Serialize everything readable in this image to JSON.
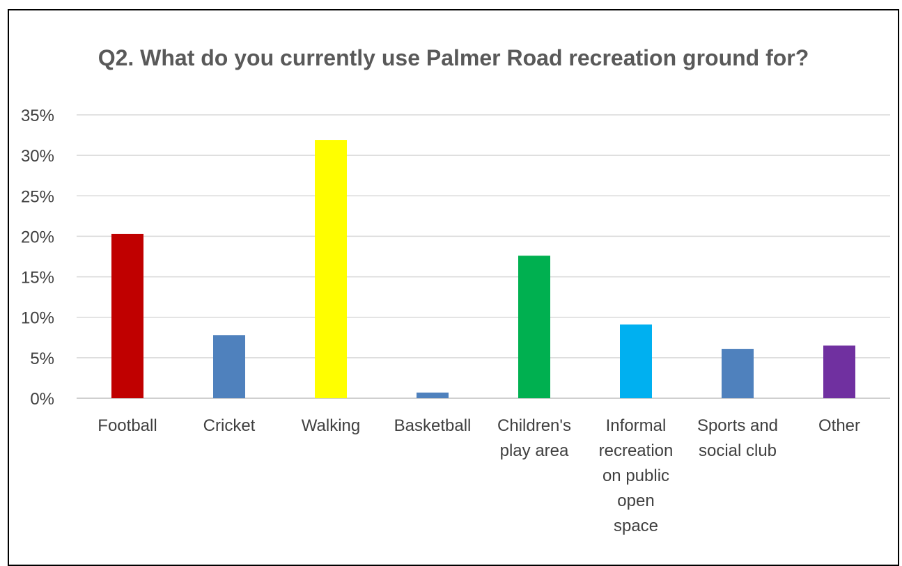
{
  "chart_data": {
    "type": "bar",
    "title": "Q2. What do you currently use Palmer Road recreation ground for?",
    "xlabel": "",
    "ylabel": "",
    "ylim": [
      0,
      35
    ],
    "yticks": [
      "0%",
      "5%",
      "10%",
      "15%",
      "20%",
      "25%",
      "30%",
      "35%"
    ],
    "ytick_values": [
      0,
      5,
      10,
      15,
      20,
      25,
      30,
      35
    ],
    "grid": true,
    "categories": [
      [
        "Football"
      ],
      [
        "Cricket"
      ],
      [
        "Walking"
      ],
      [
        "Basketball"
      ],
      [
        "Children's",
        "play area"
      ],
      [
        "Informal",
        "recreation",
        "on public",
        "open",
        "space"
      ],
      [
        "Sports and",
        "social club"
      ],
      [
        "Other"
      ]
    ],
    "values": [
      20.3,
      7.8,
      31.9,
      0.7,
      17.6,
      9.1,
      6.1,
      6.5
    ],
    "colors": [
      "#C00000",
      "#4F81BD",
      "#FFFF00",
      "#4F81BD",
      "#00B050",
      "#00B0F0",
      "#4F81BD",
      "#7030A0"
    ]
  }
}
